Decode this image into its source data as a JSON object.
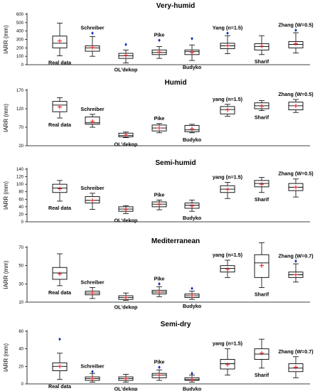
{
  "chart_data": [
    {
      "type": "boxplot",
      "title": "Very-humid",
      "ylabel": "IARR (mm)",
      "ylim": [
        0,
        600
      ],
      "yticks": [
        0,
        100,
        200,
        300,
        400,
        500,
        600
      ],
      "categories": [
        "Real data",
        "Schreiber",
        "OL'dekop",
        "Pike",
        "Budyko",
        "Yang (n=1.5)",
        "Sharif",
        "Zhang (W=0.5)"
      ],
      "label_pos": [
        "below",
        "above",
        "below",
        "above",
        "below",
        "above",
        "below",
        "above"
      ],
      "boxes": [
        {
          "whislo": 105,
          "q1": 200,
          "median": 255,
          "q3": 340,
          "whishi": 495,
          "mean": 282,
          "fliers": []
        },
        {
          "whislo": 100,
          "q1": 160,
          "median": 200,
          "q3": 225,
          "whishi": 335,
          "mean": 203,
          "fliers": [
            375
          ]
        },
        {
          "whislo": 20,
          "q1": 75,
          "median": 105,
          "q3": 135,
          "whishi": 175,
          "mean": 110,
          "fliers": [
            240
          ]
        },
        {
          "whislo": 75,
          "q1": 120,
          "median": 145,
          "q3": 175,
          "whishi": 215,
          "mean": 150,
          "fliers": [
            290
          ]
        },
        {
          "whislo": 50,
          "q1": 120,
          "median": 155,
          "q3": 175,
          "whishi": 235,
          "mean": 145,
          "fliers": [
            310
          ]
        },
        {
          "whislo": 130,
          "q1": 190,
          "median": 225,
          "q3": 255,
          "whishi": 345,
          "mean": 225,
          "fliers": [
            375
          ]
        },
        {
          "whislo": 120,
          "q1": 175,
          "median": 215,
          "q3": 250,
          "whishi": 345,
          "mean": 220,
          "fliers": []
        },
        {
          "whislo": 140,
          "q1": 200,
          "median": 240,
          "q3": 275,
          "whishi": 380,
          "mean": 250,
          "fliers": [
            410
          ]
        }
      ]
    },
    {
      "type": "boxplot",
      "title": "Humid",
      "ylabel": "IARR (mm)",
      "ylim": [
        20,
        170
      ],
      "yticks": [
        20,
        70,
        120,
        170
      ],
      "categories": [
        "Real data",
        "Schreiber",
        "OL'dekop",
        "Pike",
        "Budyko",
        "yang (n=1.5)",
        "Sharif",
        "Zhang (W=0.5)"
      ],
      "label_pos": [
        "below",
        "above",
        "below",
        "above",
        "below",
        "above",
        "below",
        "above"
      ],
      "boxes": [
        {
          "whislo": 95,
          "q1": 112,
          "median": 130,
          "q3": 140,
          "whishi": 150,
          "mean": 125,
          "fliers": []
        },
        {
          "whislo": 70,
          "q1": 78,
          "median": 82,
          "q3": 98,
          "whishi": 105,
          "mean": 86,
          "fliers": []
        },
        {
          "whislo": 42,
          "q1": 44,
          "median": 48,
          "q3": 54,
          "whishi": 57,
          "mean": 49,
          "fliers": []
        },
        {
          "whislo": 55,
          "q1": 60,
          "median": 68,
          "q3": 76,
          "whishi": 80,
          "mean": 68,
          "fliers": []
        },
        {
          "whislo": 55,
          "q1": 58,
          "median": 63,
          "q3": 75,
          "whishi": 78,
          "mean": 66,
          "fliers": []
        },
        {
          "whislo": 100,
          "q1": 106,
          "median": 118,
          "q3": 126,
          "whishi": 132,
          "mean": 117,
          "fliers": []
        },
        {
          "whislo": 115,
          "q1": 120,
          "median": 128,
          "q3": 136,
          "whishi": 142,
          "mean": 127,
          "fliers": []
        },
        {
          "whislo": 110,
          "q1": 117,
          "median": 128,
          "q3": 138,
          "whishi": 145,
          "mean": 128,
          "fliers": []
        }
      ]
    },
    {
      "type": "boxplot",
      "title": "Semi-humid",
      "ylabel": "IARR (mm)",
      "ylim": [
        0,
        140
      ],
      "yticks": [
        0,
        20,
        40,
        60,
        80,
        100,
        120,
        140
      ],
      "categories": [
        "Real data",
        "Schreiber",
        "OL'dekop",
        "Pike",
        "Budyko",
        "yang (n=1.5)",
        "Sharif",
        "Zhang (W=0.5)"
      ],
      "label_pos": [
        "below",
        "above",
        "below",
        "above",
        "below",
        "above",
        "below",
        "above"
      ],
      "boxes": [
        {
          "whislo": 55,
          "q1": 78,
          "median": 90,
          "q3": 100,
          "whishi": 110,
          "mean": 88,
          "fliers": []
        },
        {
          "whislo": 33,
          "q1": 50,
          "median": 57,
          "q3": 67,
          "whishi": 76,
          "mean": 57,
          "fliers": []
        },
        {
          "whislo": 22,
          "q1": 28,
          "median": 34,
          "q3": 40,
          "whishi": 43,
          "mean": 33,
          "fliers": []
        },
        {
          "whislo": 32,
          "q1": 40,
          "median": 47,
          "q3": 53,
          "whishi": 58,
          "mean": 46,
          "fliers": []
        },
        {
          "whislo": 28,
          "q1": 36,
          "median": 44,
          "q3": 50,
          "whishi": 58,
          "mean": 42,
          "fliers": []
        },
        {
          "whislo": 62,
          "q1": 78,
          "median": 87,
          "q3": 96,
          "whishi": 105,
          "mean": 86,
          "fliers": []
        },
        {
          "whislo": 78,
          "q1": 93,
          "median": 102,
          "q3": 110,
          "whishi": 118,
          "mean": 100,
          "fliers": []
        },
        {
          "whislo": 66,
          "q1": 83,
          "median": 92,
          "q3": 102,
          "whishi": 114,
          "mean": 92,
          "fliers": []
        }
      ]
    },
    {
      "type": "boxplot",
      "title": "Mediterranean",
      "ylabel": "IARR (mm)",
      "ylim": [
        10,
        70
      ],
      "yticks": [
        10,
        30,
        50,
        70
      ],
      "categories": [
        "Real data",
        "Schreiber",
        "OL'dekop",
        "Pike",
        "Budyko",
        "yang (n=1.5)",
        "Sharif",
        "Zhang (W=0.7)"
      ],
      "label_pos": [
        "below",
        "above",
        "below",
        "above",
        "below",
        "above",
        "below",
        "above"
      ],
      "boxes": [
        {
          "whislo": 28,
          "q1": 35,
          "median": 42,
          "q3": 48,
          "whishi": 63,
          "mean": 41,
          "fliers": []
        },
        {
          "whislo": 14,
          "q1": 18,
          "median": 20,
          "q3": 22,
          "whishi": 26,
          "mean": 20,
          "fliers": []
        },
        {
          "whislo": 12,
          "q1": 13,
          "median": 15,
          "q3": 17,
          "whishi": 20,
          "mean": 15,
          "fliers": []
        },
        {
          "whislo": 16,
          "q1": 19,
          "median": 21,
          "q3": 23,
          "whishi": 27,
          "mean": 21,
          "fliers": [
            30
          ]
        },
        {
          "whislo": 13,
          "q1": 15,
          "median": 17,
          "q3": 19,
          "whishi": 22,
          "mean": 17,
          "fliers": [
            25
          ]
        },
        {
          "whislo": 37,
          "q1": 43,
          "median": 47,
          "q3": 50,
          "whishi": 56,
          "mean": 46,
          "fliers": []
        },
        {
          "whislo": 26,
          "q1": 37,
          "median": 53,
          "q3": 62,
          "whishi": 75,
          "mean": 50,
          "fliers": []
        },
        {
          "whislo": 32,
          "q1": 37,
          "median": 40,
          "q3": 43,
          "whishi": 52,
          "mean": 40,
          "fliers": [
            55
          ]
        }
      ]
    },
    {
      "type": "boxplot",
      "title": "Semi-dry",
      "ylabel": "IARR (mm)",
      "ylim": [
        0,
        60
      ],
      "yticks": [
        0,
        20,
        40,
        60
      ],
      "categories": [
        "Real data",
        "Schreiber",
        "OL'dekop",
        "Pike",
        "Budyko",
        "yang (n=1.5)",
        "Sharif",
        "Zhang (W=0.7)"
      ],
      "label_pos": [
        "below",
        "above",
        "below",
        "above",
        "below",
        "above",
        "below",
        "above"
      ],
      "boxes": [
        {
          "whislo": 5,
          "q1": 15,
          "median": 20,
          "q3": 24,
          "whishi": 35,
          "mean": 20,
          "fliers": [
            51
          ]
        },
        {
          "whislo": 2,
          "q1": 4,
          "median": 6,
          "q3": 8,
          "whishi": 12,
          "mean": 6,
          "fliers": [
            14
          ]
        },
        {
          "whislo": 2,
          "q1": 4,
          "median": 6,
          "q3": 8,
          "whishi": 11,
          "mean": 6,
          "fliers": []
        },
        {
          "whislo": 4,
          "q1": 7,
          "median": 10,
          "q3": 12,
          "whishi": 16,
          "mean": 10,
          "fliers": [
            19
          ]
        },
        {
          "whislo": 2,
          "q1": 4,
          "median": 5,
          "q3": 7,
          "whishi": 10,
          "mean": 5,
          "fliers": [
            12
          ]
        },
        {
          "whislo": 10,
          "q1": 17,
          "median": 23,
          "q3": 28,
          "whishi": 40,
          "mean": 22,
          "fliers": []
        },
        {
          "whislo": 18,
          "q1": 28,
          "median": 34,
          "q3": 40,
          "whishi": 51,
          "mean": 35,
          "fliers": []
        },
        {
          "whislo": 7,
          "q1": 14,
          "median": 18,
          "q3": 23,
          "whishi": 31,
          "mean": 19,
          "fliers": []
        }
      ]
    }
  ],
  "colors": {
    "box": "#000000",
    "flier": "#1a2fb5",
    "mean": "#ee2222"
  }
}
